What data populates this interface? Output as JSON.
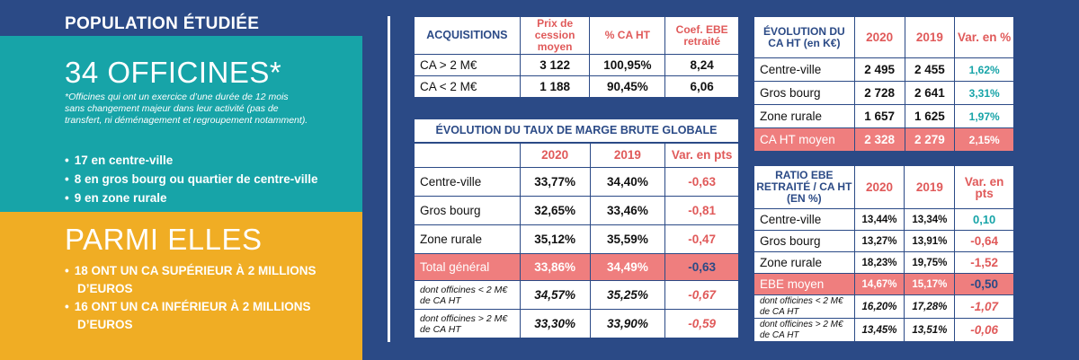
{
  "left": {
    "title": "POPULATION ÉTUDIÉE",
    "count": "34 OFFICINES*",
    "note": "*Officines qui ont un exercice d’une durée de 12 mois sans changement majeur dans leur activité (pas de transfert, ni déménagement et regroupement notamment).",
    "items": [
      "17 en centre-ville",
      "8 en gros bourg ou quartier de centre-ville",
      "9 en zone rurale"
    ],
    "among": "PARMI ELLES",
    "among_items": [
      "18 ONT UN CA SUPÉRIEUR À 2 MILLIONS D’EUROS",
      "16 ONT UN CA INFÉRIEUR À 2 MILLIONS D’EUROS"
    ]
  },
  "acq": {
    "headers": [
      "ACQUISITIONS",
      "Prix de cession moyen",
      "% CA HT",
      "Coef. EBE retraité"
    ],
    "rows": [
      [
        "CA > 2 M€",
        "3 122",
        "100,95%",
        "8,24"
      ],
      [
        "CA < 2 M€",
        "1 188",
        "90,45%",
        "6,06"
      ]
    ]
  },
  "marge": {
    "title": "ÉVOLUTION DU TAUX DE MARGE BRUTE GLOBALE",
    "headers": [
      "",
      "2020",
      "2019",
      "Var. en pts"
    ],
    "rows": [
      [
        "Centre-ville",
        "33,77%",
        "34,40%",
        "-0,63"
      ],
      [
        "Gros bourg",
        "32,65%",
        "33,46%",
        "-0,81"
      ],
      [
        "Zone rurale",
        "35,12%",
        "35,59%",
        "-0,47"
      ],
      [
        "Total général",
        "33,86%",
        "34,49%",
        "-0,63"
      ],
      [
        "dont officines < 2 M€ de CA HT",
        "34,57%",
        "35,25%",
        "-0,67"
      ],
      [
        "dont officines > 2 M€ de CA HT",
        "33,30%",
        "33,90%",
        "-0,59"
      ]
    ]
  },
  "ca": {
    "headers": [
      "ÉVOLUTION DU CA HT (en K€)",
      "2020",
      "2019",
      "Var. en %"
    ],
    "rows": [
      [
        "Centre-ville",
        "2 495",
        "2 455",
        "1,62%"
      ],
      [
        "Gros bourg",
        "2 728",
        "2 641",
        "3,31%"
      ],
      [
        "Zone rurale",
        "1 657",
        "1 625",
        "1,97%"
      ],
      [
        "CA HT moyen",
        "2 328",
        "2 279",
        "2,15%"
      ]
    ]
  },
  "ratio": {
    "headers": [
      "RATIO EBE RETRAITÉ / CA HT (EN %)",
      "2020",
      "2019",
      "Var. en pts"
    ],
    "rows": [
      [
        "Centre-ville",
        "13,44%",
        "13,34%",
        "0,10"
      ],
      [
        "Gros bourg",
        "13,27%",
        "13,91%",
        "-0,64"
      ],
      [
        "Zone rurale",
        "18,23%",
        "19,75%",
        "-1,52"
      ],
      [
        "EBE moyen",
        "14,67%",
        "15,17%",
        "-0,50"
      ],
      [
        "dont officines < 2 M€ de CA HT",
        "16,20%",
        "17,28%",
        "-1,07"
      ],
      [
        "dont officines > 2 M€ de CA HT",
        "13,45%",
        "13,51%",
        "-0,06"
      ]
    ]
  }
}
